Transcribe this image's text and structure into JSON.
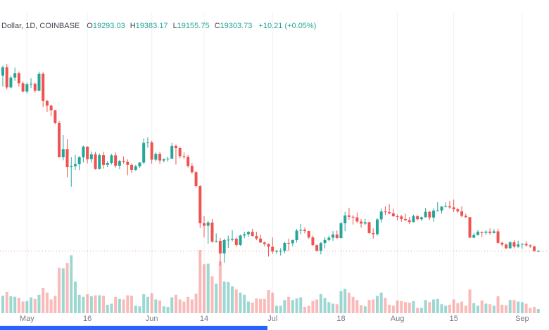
{
  "legend": {
    "symbol_text": "Dollar, 1D, COINBASE",
    "ohlc": [
      {
        "label": "O",
        "value": "19293.03"
      },
      {
        "label": "H",
        "value": "19383.17"
      },
      {
        "label": "L",
        "value": "19155.75"
      },
      {
        "label": "C",
        "value": "19303.73"
      }
    ],
    "change_text": "+10.21 (+0.05%)"
  },
  "colors": {
    "up": "#26a69a",
    "down": "#ef5350",
    "vol_up": "rgba(38,166,154,0.45)",
    "vol_down": "rgba(239,83,80,0.40)",
    "grid": "rgba(42,46,57,0.07)",
    "axis_text": "#787b86",
    "price_line": "rgba(239,83,80,0.65)",
    "bottom_bar": "#2962ff",
    "background": "#ffffff",
    "legend_text": "#434651",
    "legend_value": "#26a69a"
  },
  "chart_data": {
    "type": "candlestick",
    "symbol_visible": "Dollar, 1D, COINBASE",
    "interval": "1D",
    "exchange": "COINBASE",
    "start_date": "2022-04-25",
    "interval_days": 1,
    "price_range": [
      17400,
      41300
    ],
    "last_candle": {
      "open": 19293.03,
      "high": 19383.17,
      "low": 19155.75,
      "close": 19303.73,
      "change": 10.21,
      "change_pct": "+0.05%"
    },
    "axis_labels": [
      {
        "text": "May",
        "index": 6
      },
      {
        "text": "16",
        "index": 21
      },
      {
        "text": "Jun",
        "index": 37
      },
      {
        "text": "14",
        "index": 50
      },
      {
        "text": "Jul",
        "index": 67
      },
      {
        "text": "18",
        "index": 84
      },
      {
        "text": "Aug",
        "index": 98
      },
      {
        "text": "15",
        "index": 112
      },
      {
        "text": "Sep",
        "index": 129
      }
    ],
    "candles_format": [
      "open",
      "high",
      "low",
      "close",
      "volume"
    ],
    "candles": [
      [
        39472,
        40616,
        38200,
        40426,
        33
      ],
      [
        40426,
        40797,
        37881,
        38112,
        40
      ],
      [
        38112,
        39474,
        37997,
        39235,
        32
      ],
      [
        39235,
        40372,
        38881,
        39742,
        31
      ],
      [
        39742,
        39925,
        38175,
        38596,
        29
      ],
      [
        38596,
        38795,
        37578,
        37630,
        22
      ],
      [
        37630,
        38675,
        37386,
        38468,
        23
      ],
      [
        38468,
        39167,
        38052,
        38525,
        30
      ],
      [
        38525,
        38651,
        37517,
        37728,
        27
      ],
      [
        37728,
        39902,
        37670,
        39690,
        35
      ],
      [
        39690,
        39845,
        35857,
        36551,
        48
      ],
      [
        36551,
        36675,
        35291,
        36013,
        39
      ],
      [
        36013,
        36129,
        34803,
        35472,
        26
      ],
      [
        35472,
        35514,
        33878,
        34038,
        33
      ],
      [
        34038,
        34243,
        30072,
        30077,
        86
      ],
      [
        30077,
        32658,
        29730,
        31017,
        85
      ],
      [
        31017,
        32162,
        27785,
        28936,
        95
      ],
      [
        28936,
        30098,
        26700,
        29047,
        110
      ],
      [
        29047,
        30343,
        28630,
        29283,
        60
      ],
      [
        29283,
        30243,
        28598,
        30075,
        35
      ],
      [
        30075,
        31420,
        29480,
        31305,
        31
      ],
      [
        31305,
        31328,
        29383,
        29862,
        36
      ],
      [
        29862,
        30740,
        29459,
        30425,
        32
      ],
      [
        30425,
        30709,
        28654,
        28720,
        34
      ],
      [
        28720,
        30528,
        28690,
        30314,
        34
      ],
      [
        30314,
        30716,
        28761,
        29200,
        33
      ],
      [
        29200,
        29605,
        28947,
        29432,
        16
      ],
      [
        29432,
        30454,
        29246,
        30293,
        18
      ],
      [
        30293,
        30634,
        28887,
        29109,
        31
      ],
      [
        29109,
        29769,
        28689,
        29655,
        27
      ],
      [
        29655,
        30177,
        29329,
        29542,
        26
      ],
      [
        29542,
        29843,
        28023,
        29201,
        34
      ],
      [
        29201,
        29368,
        28255,
        28627,
        33
      ],
      [
        28627,
        29204,
        28527,
        29031,
        14
      ],
      [
        29031,
        29521,
        28839,
        29468,
        13
      ],
      [
        29468,
        32223,
        29298,
        31734,
        36
      ],
      [
        31734,
        32375,
        31190,
        31801,
        31
      ],
      [
        31801,
        31960,
        29324,
        29799,
        38
      ],
      [
        29799,
        30633,
        29594,
        30467,
        26
      ],
      [
        30467,
        30683,
        29322,
        29704,
        24
      ],
      [
        29704,
        29945,
        29477,
        29864,
        13
      ],
      [
        29864,
        30157,
        29554,
        29919,
        12
      ],
      [
        29919,
        31723,
        29897,
        31373,
        30
      ],
      [
        31373,
        31554,
        29230,
        31125,
        35
      ],
      [
        31125,
        31308,
        29924,
        30205,
        26
      ],
      [
        30205,
        30650,
        29885,
        30110,
        22
      ],
      [
        30110,
        30322,
        28897,
        29083,
        31
      ],
      [
        29083,
        29404,
        28168,
        28360,
        26
      ],
      [
        28360,
        28506,
        26581,
        26762,
        37
      ],
      [
        26762,
        26874,
        21948,
        22487,
        120
      ],
      [
        22487,
        23290,
        20852,
        22206,
        93
      ],
      [
        22206,
        22762,
        20108,
        22572,
        94
      ],
      [
        22572,
        22972,
        20236,
        20381,
        70
      ],
      [
        20381,
        21329,
        20270,
        20471,
        56
      ],
      [
        20471,
        20795,
        17622,
        19017,
        98
      ],
      [
        19017,
        20736,
        17958,
        20553,
        60
      ],
      [
        20553,
        21063,
        19648,
        20599,
        59
      ],
      [
        20599,
        21691,
        20379,
        20710,
        51
      ],
      [
        20710,
        20850,
        19786,
        19987,
        45
      ],
      [
        19987,
        21152,
        19897,
        21085,
        39
      ],
      [
        21085,
        21520,
        20777,
        21231,
        35
      ],
      [
        21231,
        21580,
        20936,
        21502,
        22
      ],
      [
        21502,
        21857,
        20964,
        21027,
        20
      ],
      [
        21027,
        21514,
        20533,
        20735,
        28
      ],
      [
        20735,
        21187,
        20224,
        20280,
        27
      ],
      [
        20280,
        20395,
        19856,
        20104,
        27
      ],
      [
        20104,
        20167,
        18663,
        19784,
        44
      ],
      [
        19784,
        20856,
        18968,
        19242,
        39
      ],
      [
        19242,
        19431,
        18972,
        19297,
        14
      ],
      [
        19297,
        19620,
        18790,
        19303,
        14
      ],
      [
        19303,
        20319,
        19057,
        20231,
        25
      ],
      [
        20231,
        20729,
        19315,
        20190,
        31
      ],
      [
        20190,
        20627,
        19832,
        20548,
        25
      ],
      [
        20548,
        21842,
        20272,
        21637,
        28
      ],
      [
        21637,
        22415,
        21215,
        21731,
        30
      ],
      [
        21731,
        21981,
        21328,
        21592,
        12
      ],
      [
        21592,
        21625,
        20698,
        20860,
        14
      ],
      [
        20860,
        21072,
        19899,
        19970,
        23
      ],
      [
        19970,
        20050,
        19240,
        19323,
        26
      ],
      [
        19323,
        20336,
        18910,
        20212,
        36
      ],
      [
        20212,
        20880,
        19601,
        20569,
        29
      ],
      [
        20569,
        21057,
        20369,
        20836,
        21
      ],
      [
        20836,
        21590,
        20477,
        21190,
        18
      ],
      [
        21190,
        21660,
        20742,
        20780,
        17
      ],
      [
        20780,
        22677,
        20769,
        22485,
        42
      ],
      [
        22485,
        23800,
        21579,
        23389,
        46
      ],
      [
        23389,
        24276,
        22903,
        23231,
        39
      ],
      [
        23231,
        23432,
        22341,
        23164,
        31
      ],
      [
        23164,
        23720,
        22500,
        22690,
        25
      ],
      [
        22690,
        22987,
        21977,
        22451,
        15
      ],
      [
        22451,
        23009,
        22260,
        22609,
        13
      ],
      [
        22609,
        22649,
        21272,
        21361,
        25
      ],
      [
        21361,
        21900,
        20735,
        21239,
        26
      ],
      [
        21239,
        23061,
        21059,
        22930,
        33
      ],
      [
        22930,
        24189,
        22586,
        23843,
        39
      ],
      [
        23843,
        24436,
        23426,
        23773,
        29
      ],
      [
        23773,
        24668,
        23522,
        23634,
        16
      ],
      [
        23634,
        24185,
        23241,
        23293,
        14
      ],
      [
        23293,
        23509,
        22850,
        23271,
        24
      ],
      [
        23271,
        23457,
        22671,
        22978,
        23
      ],
      [
        22978,
        23628,
        22766,
        22846,
        21
      ],
      [
        22846,
        23222,
        22411,
        22630,
        20
      ],
      [
        22630,
        23472,
        22586,
        23312,
        23
      ],
      [
        23312,
        23394,
        22812,
        22954,
        10
      ],
      [
        22954,
        23257,
        22771,
        23175,
        10
      ],
      [
        23175,
        24245,
        23156,
        23810,
        25
      ],
      [
        23810,
        23908,
        22865,
        23150,
        21
      ],
      [
        23150,
        24204,
        22670,
        23948,
        26
      ],
      [
        23948,
        24917,
        23855,
        23957,
        27
      ],
      [
        23957,
        24448,
        23578,
        24402,
        17
      ],
      [
        24402,
        24891,
        24301,
        24444,
        14
      ],
      [
        24444,
        25047,
        24150,
        24312,
        16
      ],
      [
        24312,
        25212,
        23779,
        24094,
        26
      ],
      [
        24094,
        24247,
        23671,
        23854,
        19
      ],
      [
        23854,
        24430,
        23180,
        23342,
        22
      ],
      [
        23342,
        23582,
        23120,
        23191,
        14
      ],
      [
        23191,
        23207,
        20807,
        20834,
        45
      ],
      [
        20834,
        21372,
        20766,
        21139,
        19
      ],
      [
        21139,
        21700,
        21072,
        21516,
        14
      ],
      [
        21516,
        21520,
        20899,
        21400,
        24
      ],
      [
        21400,
        21672,
        21143,
        21529,
        18
      ],
      [
        21529,
        21900,
        21155,
        21369,
        17
      ],
      [
        21369,
        21819,
        21319,
        21559,
        14
      ],
      [
        21559,
        21877,
        20117,
        20241,
        32
      ],
      [
        20241,
        20399,
        19807,
        20038,
        16
      ],
      [
        20038,
        20171,
        19524,
        19616,
        15
      ],
      [
        19616,
        20437,
        19553,
        20298,
        25
      ],
      [
        20298,
        20576,
        19591,
        19799,
        25
      ],
      [
        19799,
        20490,
        19667,
        20050,
        22
      ],
      [
        20050,
        20200,
        19561,
        20127,
        21
      ],
      [
        20127,
        20444,
        19754,
        19953,
        18
      ],
      [
        19953,
        20055,
        19653,
        19832,
        10
      ],
      [
        19832,
        19876,
        19229,
        19293,
        12
      ],
      [
        19293.03,
        19383.17,
        19155.75,
        19303.73,
        8
      ]
    ]
  }
}
